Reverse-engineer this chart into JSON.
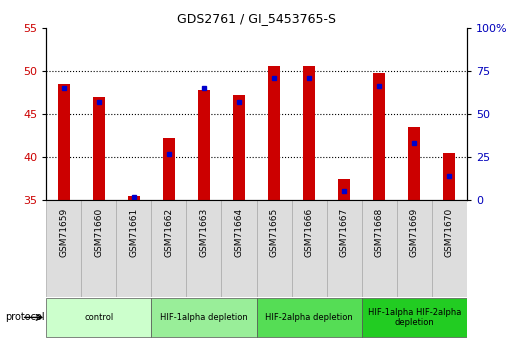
{
  "title": "GDS2761 / GI_5453765-S",
  "samples": [
    "GSM71659",
    "GSM71660",
    "GSM71661",
    "GSM71662",
    "GSM71663",
    "GSM71664",
    "GSM71665",
    "GSM71666",
    "GSM71667",
    "GSM71668",
    "GSM71669",
    "GSM71670"
  ],
  "count_values": [
    48.5,
    47.0,
    35.5,
    42.2,
    47.8,
    47.2,
    50.5,
    50.5,
    37.5,
    49.7,
    43.5,
    40.5
  ],
  "percentile_ranks": [
    65,
    57,
    2,
    27,
    65,
    57,
    71,
    71,
    5,
    66,
    33,
    14
  ],
  "ylim_left": [
    35,
    55
  ],
  "ylim_right": [
    0,
    100
  ],
  "yticks_left": [
    35,
    40,
    45,
    50,
    55
  ],
  "ytick_labels_left": [
    "35",
    "40",
    "45",
    "50",
    "55"
  ],
  "yticks_right": [
    0,
    25,
    50,
    75,
    100
  ],
  "ytick_labels_right": [
    "0",
    "25",
    "50",
    "75",
    "100%"
  ],
  "bar_width": 0.35,
  "count_color": "#cc0000",
  "percentile_color": "#0000cc",
  "groups": [
    {
      "label": "control",
      "start": 0,
      "end": 2,
      "color": "#ccffcc"
    },
    {
      "label": "HIF-1alpha depletion",
      "start": 3,
      "end": 5,
      "color": "#99ee99"
    },
    {
      "label": "HIF-2alpha depletion",
      "start": 6,
      "end": 8,
      "color": "#55dd55"
    },
    {
      "label": "HIF-1alpha HIF-2alpha\ndepletion",
      "start": 9,
      "end": 11,
      "color": "#22cc22"
    }
  ],
  "sample_box_color": "#dddddd",
  "left_axis_color": "#cc0000",
  "right_axis_color": "#0000bb"
}
